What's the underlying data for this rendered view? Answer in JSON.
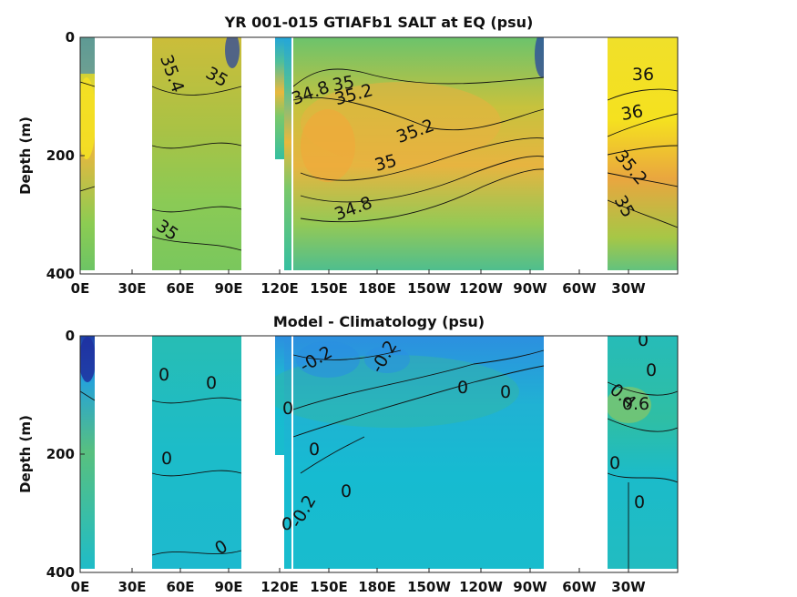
{
  "chart_data": [
    {
      "type": "heatmap",
      "title": "YR 001-015 GTIAFb1 SALT at EQ (psu)",
      "xlabel": "",
      "ylabel": "Depth (m)",
      "x_ticks": [
        "0E",
        "30E",
        "60E",
        "90E",
        "120E",
        "150E",
        "180E",
        "150W",
        "120W",
        "90W",
        "60W",
        "30W"
      ],
      "y_ticks": [
        "0",
        "200",
        "400"
      ],
      "xlim": [
        0,
        360
      ],
      "ylim": [
        400,
        0
      ],
      "colormap": "parula",
      "colors": {
        "low": "#2a3fa0",
        "mid": "#2fb89a",
        "high": "#f5e11f",
        "land": "#ffffff"
      },
      "land_gaps_lon": [
        [
          6,
          44
        ],
        [
          97,
          108
        ],
        [
          110,
          120
        ],
        [
          285,
          316
        ]
      ],
      "contour_labels": [
        "35.4",
        "35",
        "34.8",
        "35",
        "35.2",
        "35.2",
        "35",
        "34.8",
        "35",
        "36",
        "36",
        "35.2",
        "35"
      ]
    },
    {
      "type": "heatmap",
      "title": "Model - Climatology (psu)",
      "xlabel": "",
      "ylabel": "Depth (m)",
      "x_ticks": [
        "0E",
        "30E",
        "60E",
        "90E",
        "120E",
        "150E",
        "180E",
        "150W",
        "120W",
        "90W",
        "60W",
        "30W"
      ],
      "y_ticks": [
        "0",
        "200",
        "400"
      ],
      "xlim": [
        0,
        360
      ],
      "ylim": [
        400,
        0
      ],
      "colormap": "parula",
      "colors": {
        "low": "#2a3fa0",
        "mid": "#1bbcd0",
        "high": "#f5e11f",
        "land": "#ffffff"
      },
      "land_gaps_lon": [
        [
          6,
          44
        ],
        [
          97,
          108
        ],
        [
          110,
          120
        ],
        [
          285,
          316
        ]
      ],
      "contour_labels": [
        "0",
        "0",
        "0",
        "0",
        "-0.2",
        "-0.2",
        "0",
        "0",
        "0",
        "0",
        "-0.2",
        "0",
        "0",
        "0",
        "0.4",
        "0.6",
        "0",
        "0",
        "0"
      ]
    }
  ]
}
